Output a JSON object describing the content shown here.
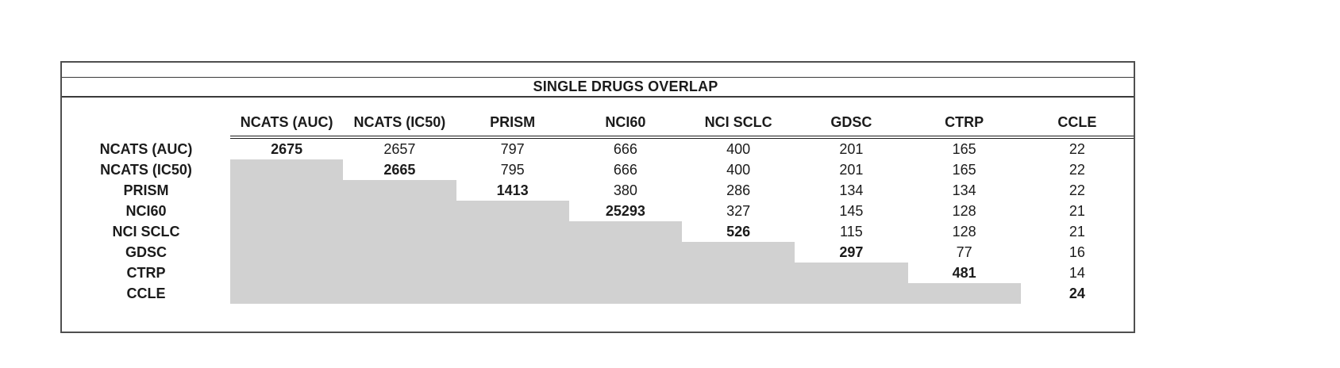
{
  "table": {
    "title": "SINGLE DRUGS OVERLAP",
    "columns": [
      "NCATS (AUC)",
      "NCATS (IC50)",
      "PRISM",
      "NCI60",
      "NCI SCLC",
      "GDSC",
      "CTRP",
      "CCLE"
    ],
    "rows": [
      {
        "label": "NCATS (AUC)",
        "cells": [
          {
            "v": "2675",
            "bold": true
          },
          {
            "v": "2657"
          },
          {
            "v": "797"
          },
          {
            "v": "666"
          },
          {
            "v": "400"
          },
          {
            "v": "201"
          },
          {
            "v": "165"
          },
          {
            "v": "22"
          }
        ]
      },
      {
        "label": "NCATS (IC50)",
        "cells": [
          {
            "gray": true
          },
          {
            "v": "2665",
            "bold": true
          },
          {
            "v": "795"
          },
          {
            "v": "666"
          },
          {
            "v": "400"
          },
          {
            "v": "201"
          },
          {
            "v": "165"
          },
          {
            "v": "22"
          }
        ]
      },
      {
        "label": "PRISM",
        "cells": [
          {
            "gray": true
          },
          {
            "gray": true
          },
          {
            "v": "1413",
            "bold": true
          },
          {
            "v": "380"
          },
          {
            "v": "286"
          },
          {
            "v": "134"
          },
          {
            "v": "134"
          },
          {
            "v": "22"
          }
        ]
      },
      {
        "label": "NCI60",
        "cells": [
          {
            "gray": true
          },
          {
            "gray": true
          },
          {
            "gray": true
          },
          {
            "v": "25293",
            "bold": true
          },
          {
            "v": "327"
          },
          {
            "v": "145"
          },
          {
            "v": "128"
          },
          {
            "v": "21"
          }
        ]
      },
      {
        "label": "NCI SCLC",
        "cells": [
          {
            "gray": true
          },
          {
            "gray": true
          },
          {
            "gray": true
          },
          {
            "gray": true
          },
          {
            "v": "526",
            "bold": true
          },
          {
            "v": "115"
          },
          {
            "v": "128"
          },
          {
            "v": "21"
          }
        ]
      },
      {
        "label": "GDSC",
        "cells": [
          {
            "gray": true
          },
          {
            "gray": true
          },
          {
            "gray": true
          },
          {
            "gray": true
          },
          {
            "gray": true
          },
          {
            "v": "297",
            "bold": true
          },
          {
            "v": "77"
          },
          {
            "v": "16"
          }
        ]
      },
      {
        "label": "CTRP",
        "cells": [
          {
            "gray": true
          },
          {
            "gray": true
          },
          {
            "gray": true
          },
          {
            "gray": true
          },
          {
            "gray": true
          },
          {
            "gray": true
          },
          {
            "v": "481",
            "bold": true
          },
          {
            "v": "14"
          }
        ]
      },
      {
        "label": "CCLE",
        "cells": [
          {
            "gray": true
          },
          {
            "gray": true
          },
          {
            "gray": true
          },
          {
            "gray": true
          },
          {
            "gray": true
          },
          {
            "gray": true
          },
          {
            "gray": true
          },
          {
            "v": "24",
            "bold": true
          }
        ]
      }
    ]
  },
  "colors": {
    "shade": "#d1d1d1",
    "border": "#4f4f4f",
    "line": "#3a3a3a",
    "double_line": "#1d1d1d",
    "text": "#1b1b1b"
  }
}
